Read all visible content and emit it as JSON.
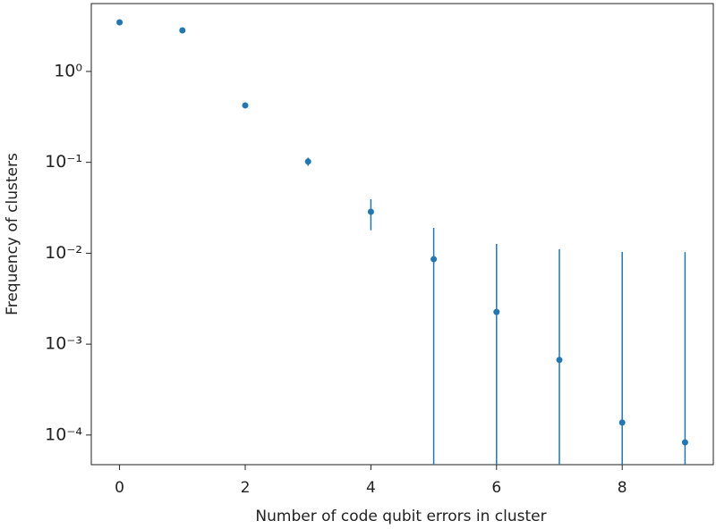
{
  "chart_data": {
    "type": "scatter",
    "xlabel": "Number of code qubit errors in cluster",
    "ylabel": "Frequency of clusters",
    "x": [
      0,
      1,
      2,
      3,
      4,
      5,
      6,
      7,
      8,
      9
    ],
    "series": [
      {
        "color": "#1f77b4",
        "values": [
          3.47,
          2.83,
          0.423,
          0.102,
          0.0286,
          0.0086,
          0.00226,
          0.00067,
          0.000137,
          8.3e-05
        ],
        "errors": [
          0.0104,
          0.0104,
          0.0104,
          0.0104,
          0.0107,
          0.0104,
          0.0104,
          0.0104,
          0.0102,
          0.0102
        ]
      }
    ],
    "xlim": [
      -0.45,
      9.45
    ],
    "ylim": [
      4.72e-05,
      5.58
    ],
    "xticks": [
      0,
      2,
      4,
      6,
      8
    ],
    "yticks": [
      {
        "value": 1,
        "label": "10⁰"
      },
      {
        "value": 0.1,
        "label": "10⁻¹"
      },
      {
        "value": 0.01,
        "label": "10⁻²"
      },
      {
        "value": 0.001,
        "label": "10⁻³"
      },
      {
        "value": 0.0001,
        "label": "10⁻⁴"
      }
    ],
    "yscale": "log"
  }
}
